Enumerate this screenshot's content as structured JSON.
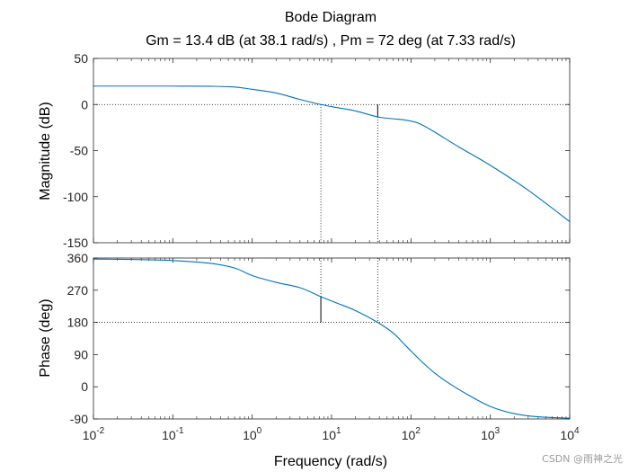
{
  "chart_data": {
    "type": "line",
    "title": "Bode Diagram",
    "subtitle": "Gm = 13.4 dB (at 38.1 rad/s) ,  Pm = 72 deg (at 7.33 rad/s)",
    "xlabel": "Frequency  (rad/s)",
    "xscale": "log",
    "xlim": [
      0.01,
      10000
    ],
    "x_ticks": [
      0.01,
      0.1,
      1,
      10,
      100,
      1000,
      10000
    ],
    "x_tick_labels": [
      {
        "base": "10",
        "exp": "-2"
      },
      {
        "base": "10",
        "exp": "-1"
      },
      {
        "base": "10",
        "exp": "0"
      },
      {
        "base": "10",
        "exp": "1"
      },
      {
        "base": "10",
        "exp": "2"
      },
      {
        "base": "10",
        "exp": "3"
      },
      {
        "base": "10",
        "exp": "4"
      }
    ],
    "line_color": "#0072bd",
    "gain_margin": {
      "value_db": 13.4,
      "frequency": 38.1,
      "magnitude_at_wpc": -13.4
    },
    "phase_margin": {
      "value_deg": 72,
      "frequency": 7.33,
      "phase_at_wgc": 252
    },
    "magnitude": {
      "ylabel": "Magnitude (dB)",
      "ylim": [
        -150,
        50
      ],
      "yticks": [
        -150,
        -100,
        -50,
        0,
        50
      ],
      "ytick_labels": [
        "-150",
        "-100",
        "-50",
        "0",
        "50"
      ],
      "reference_line": 0,
      "series": {
        "name": "Magnitude",
        "x": [
          0.01,
          0.03,
          0.1,
          0.3,
          0.6,
          1,
          2,
          4,
          7.33,
          12,
          20,
          38.1,
          60,
          80,
          100,
          130,
          200,
          400,
          1000,
          3000,
          10000
        ],
        "y": [
          20,
          20,
          20,
          19.8,
          19,
          16.5,
          12.5,
          5.5,
          0,
          -3.5,
          -7,
          -13.4,
          -15.5,
          -16.5,
          -18,
          -21,
          -30,
          -46,
          -66,
          -93,
          -127
        ]
      }
    },
    "phase": {
      "ylabel": "Phase (deg)",
      "ylim": [
        -90,
        360
      ],
      "yticks": [
        -90,
        0,
        90,
        180,
        270,
        360
      ],
      "ytick_labels": [
        "-90",
        "0",
        "90",
        "180",
        "270",
        "360"
      ],
      "reference_line": 180,
      "series": {
        "name": "Phase",
        "x": [
          0.01,
          0.03,
          0.1,
          0.3,
          0.6,
          1,
          2,
          4,
          7.33,
          12,
          20,
          38.1,
          60,
          80,
          100,
          130,
          200,
          300,
          500,
          1000,
          2000,
          4000,
          10000
        ],
        "y": [
          357,
          356,
          353,
          345,
          332,
          311,
          292,
          277,
          252,
          233,
          213,
          180,
          150,
          122,
          100,
          75,
          38,
          10,
          -20,
          -55,
          -75,
          -84,
          -88
        ]
      }
    },
    "watermark": "CSDN @雨神之光"
  }
}
